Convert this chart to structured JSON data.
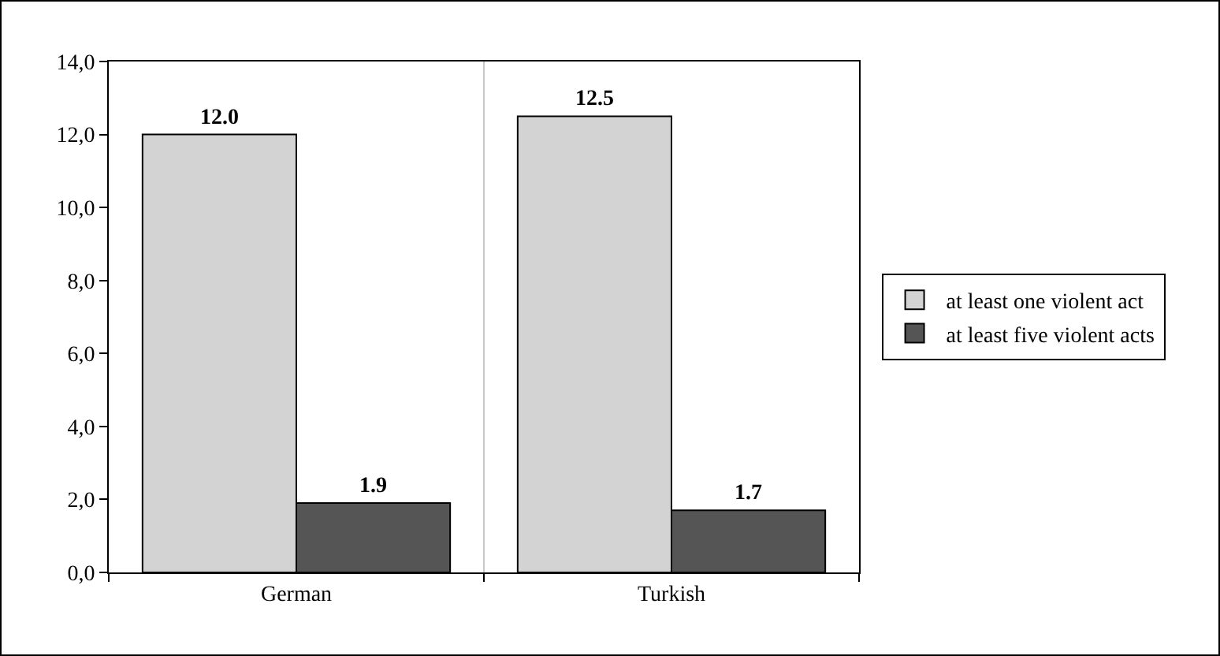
{
  "chart_data": {
    "type": "bar",
    "categories": [
      "German",
      "Turkish"
    ],
    "series": [
      {
        "name": "at least one violent act",
        "color": "#d3d3d3",
        "values": [
          12.0,
          12.5
        ],
        "value_labels": [
          "12.0",
          "12.5"
        ]
      },
      {
        "name": "at least five violent acts",
        "color": "#555555",
        "values": [
          1.9,
          1.7
        ],
        "value_labels": [
          "1.9",
          "1.7"
        ]
      }
    ],
    "ylim": [
      0,
      14
    ],
    "yticks": [
      {
        "value": 0,
        "label": "0,0"
      },
      {
        "value": 2,
        "label": "2,0"
      },
      {
        "value": 4,
        "label": "4,0"
      },
      {
        "value": 6,
        "label": "6,0"
      },
      {
        "value": 8,
        "label": "8,0"
      },
      {
        "value": 10,
        "label": "10,0"
      },
      {
        "value": 12,
        "label": "12,0"
      },
      {
        "value": 14,
        "label": "14,0"
      }
    ],
    "grid": "x",
    "legend": "right"
  }
}
